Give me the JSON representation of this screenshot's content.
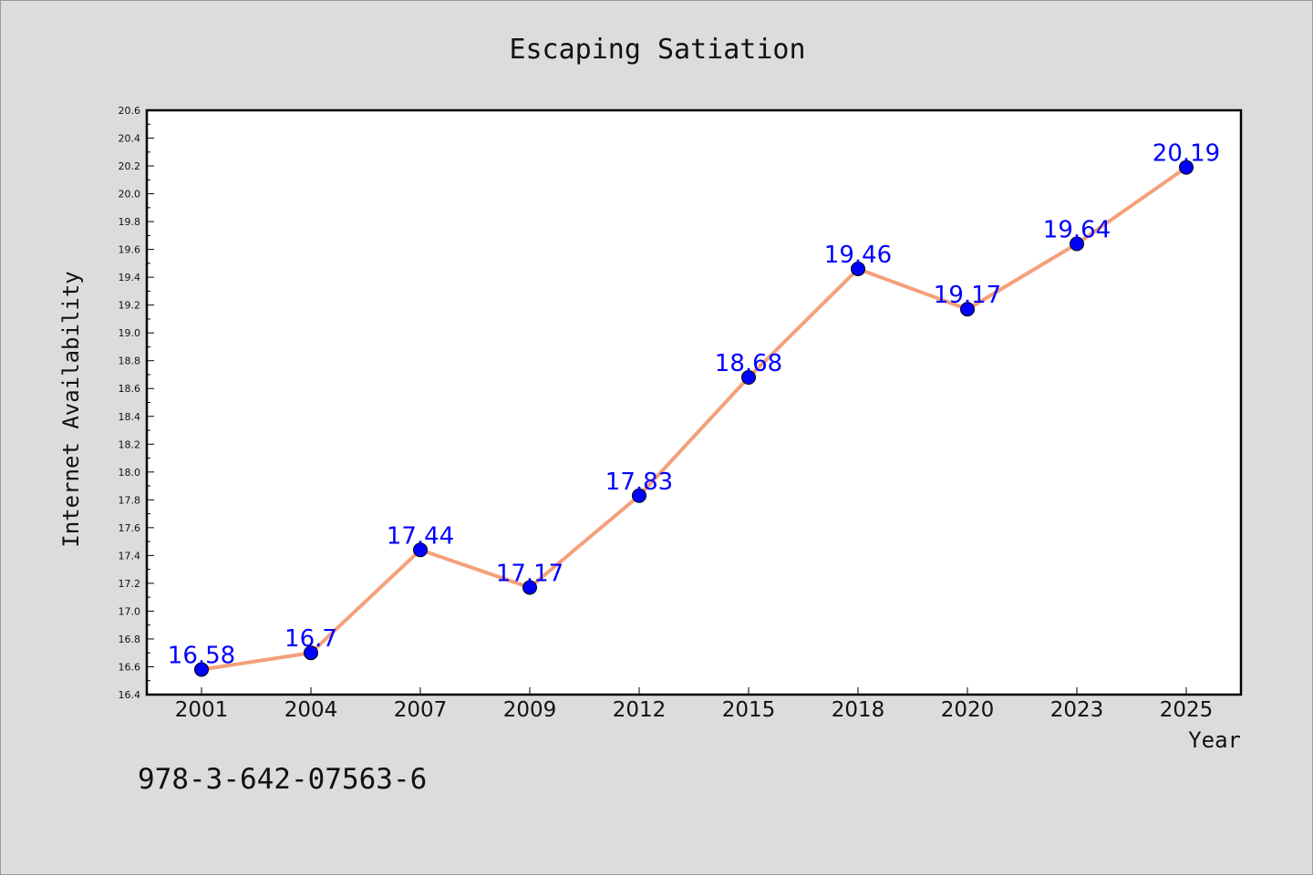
{
  "footer_text": "978-3-642-07563-6",
  "colors": {
    "background": "#dcdcdc",
    "plot_background": "#ffffff",
    "line": "#f4a07a",
    "marker": "#0000ff",
    "data_label": "#0000ff"
  },
  "chart_data": {
    "type": "line",
    "title": "Escaping Satiation",
    "xlabel": "Year",
    "ylabel": "Internet Availability",
    "categories": [
      "2001",
      "2004",
      "2007",
      "2009",
      "2012",
      "2015",
      "2018",
      "2020",
      "2023",
      "2025"
    ],
    "series": [
      {
        "values": [
          16.58,
          16.7,
          17.44,
          17.17,
          17.83,
          18.68,
          19.46,
          19.17,
          19.64,
          20.19
        ],
        "data_labels": [
          "16.58",
          "16.7",
          "17.44",
          "17.17",
          "17.83",
          "18.68",
          "19.46",
          "19.17",
          "19.64",
          "20.19"
        ]
      }
    ],
    "ylim": [
      16.4,
      20.6
    ],
    "yticks": [
      "16.4",
      "16.6",
      "16.8",
      "17.0",
      "17.2",
      "17.4",
      "17.6",
      "17.8",
      "18.0",
      "18.2",
      "18.4",
      "18.6",
      "18.8",
      "19.0",
      "19.2",
      "19.4",
      "19.6",
      "19.8",
      "20.0",
      "20.2",
      "20.4",
      "20.6"
    ],
    "grid": false,
    "legend": "none",
    "marker": "circle"
  }
}
